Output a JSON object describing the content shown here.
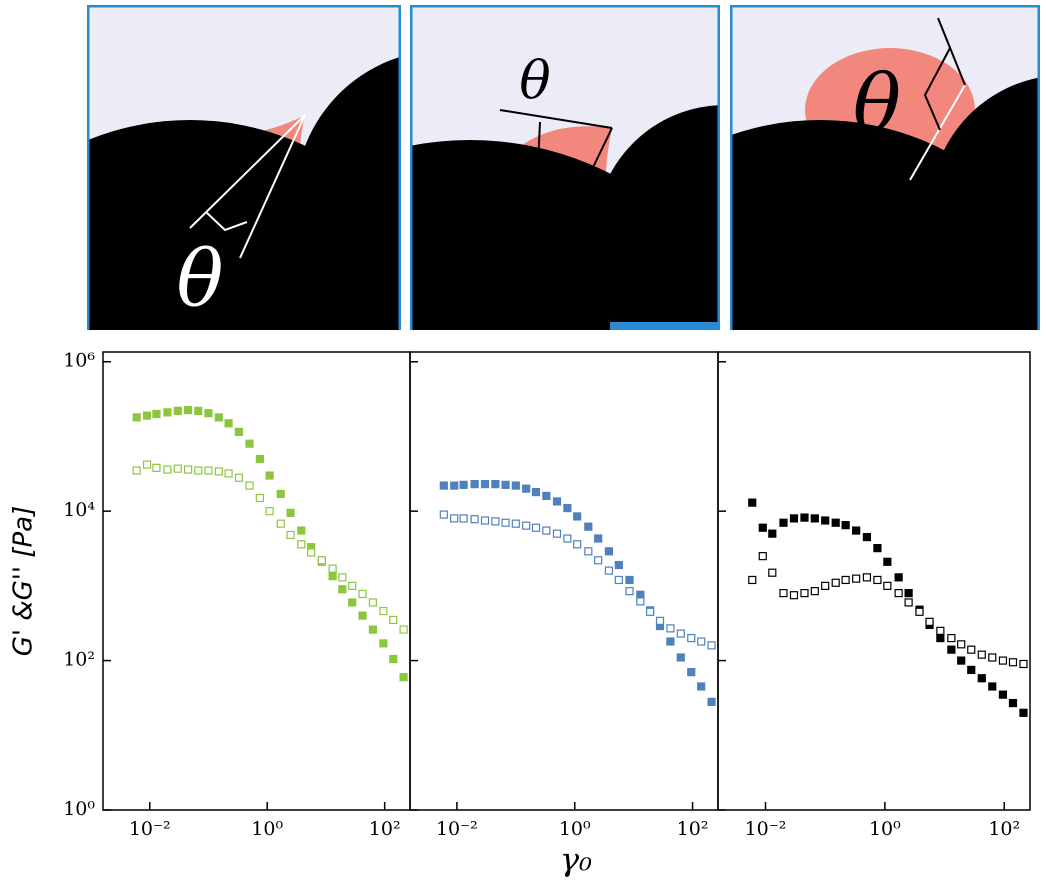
{
  "schematics": [
    {
      "label": "θ"
    },
    {
      "label": "θ"
    },
    {
      "label": "θ"
    }
  ],
  "chart_data": [
    {
      "type": "scatter",
      "ylabel": "G' &G'' [Pa]",
      "xscale": "log",
      "yscale": "log",
      "xlim": [
        0.0016,
        270
      ],
      "ylim": [
        1,
        1350000
      ],
      "xticks": [
        {
          "value": 0.01,
          "label": "10⁻²"
        },
        {
          "value": 1,
          "label": "10⁰"
        },
        {
          "value": 100,
          "label": "10²"
        }
      ],
      "yticks": [
        {
          "value": 1,
          "label": "10⁰"
        },
        {
          "value": 100,
          "label": "10²"
        },
        {
          "value": 10000,
          "label": "10⁴"
        },
        {
          "value": 1000000,
          "label": "10⁶"
        }
      ],
      "x": [
        0.006,
        0.009,
        0.013,
        0.02,
        0.03,
        0.045,
        0.067,
        0.1,
        0.15,
        0.22,
        0.33,
        0.5,
        0.75,
        1.1,
        1.7,
        2.5,
        3.8,
        5.6,
        8.5,
        13,
        19,
        28,
        42,
        63,
        95,
        140,
        210
      ],
      "series": [
        {
          "color": "#8cc63f",
          "filled": true,
          "values": [
            180000,
            190000,
            200000,
            210000,
            220000,
            225000,
            220000,
            205000,
            180000,
            150000,
            115000,
            80000,
            50000,
            30000,
            17000,
            9500,
            5500,
            3300,
            2100,
            1350,
            900,
            600,
            400,
            260,
            170,
            105,
            60
          ]
        },
        {
          "color": "#8cc63f",
          "filled": false,
          "values": [
            35000,
            42000,
            38000,
            36000,
            37000,
            36000,
            35000,
            35000,
            34000,
            32000,
            28000,
            22000,
            15000,
            10000,
            6800,
            4800,
            3600,
            2800,
            2200,
            1700,
            1300,
            1000,
            780,
            600,
            460,
            350,
            260
          ]
        }
      ]
    },
    {
      "type": "scatter",
      "xlabel": "γ₀",
      "xscale": "log",
      "yscale": "log",
      "xlim": [
        0.0016,
        270
      ],
      "ylim": [
        1,
        1350000
      ],
      "xticks": [
        {
          "value": 0.01,
          "label": "10⁻²"
        },
        {
          "value": 1,
          "label": "10⁰"
        },
        {
          "value": 100,
          "label": "10²"
        }
      ],
      "yticks": [
        1,
        100,
        10000,
        1000000
      ],
      "x": [
        0.006,
        0.009,
        0.013,
        0.02,
        0.03,
        0.045,
        0.067,
        0.1,
        0.15,
        0.22,
        0.33,
        0.5,
        0.75,
        1.1,
        1.7,
        2.5,
        3.8,
        5.6,
        8.5,
        13,
        19,
        28,
        42,
        63,
        95,
        140,
        210
      ],
      "series": [
        {
          "color": "#4f81bd",
          "filled": true,
          "values": [
            22000,
            22000,
            22500,
            23000,
            23000,
            23000,
            22500,
            22000,
            20000,
            18000,
            16000,
            13500,
            11000,
            8500,
            6200,
            4300,
            2900,
            1900,
            1200,
            760,
            470,
            290,
            180,
            110,
            70,
            45,
            28
          ]
        },
        {
          "color": "#4f81bd",
          "filled": false,
          "values": [
            9000,
            8000,
            8000,
            7800,
            7500,
            7300,
            7000,
            6800,
            6400,
            6000,
            5500,
            5000,
            4300,
            3600,
            2900,
            2200,
            1600,
            1200,
            850,
            620,
            450,
            340,
            270,
            230,
            200,
            180,
            160
          ]
        }
      ]
    },
    {
      "type": "scatter",
      "xscale": "log",
      "yscale": "log",
      "xlim": [
        0.0016,
        270
      ],
      "ylim": [
        1,
        1350000
      ],
      "xticks": [
        {
          "value": 0.01,
          "label": "10⁻²"
        },
        {
          "value": 1,
          "label": "10⁰"
        },
        {
          "value": 100,
          "label": "10²"
        }
      ],
      "yticks": [
        1,
        100,
        10000,
        1000000
      ],
      "x": [
        0.006,
        0.009,
        0.013,
        0.02,
        0.03,
        0.045,
        0.067,
        0.1,
        0.15,
        0.22,
        0.33,
        0.5,
        0.75,
        1.1,
        1.7,
        2.5,
        3.8,
        5.6,
        8.5,
        13,
        19,
        28,
        42,
        63,
        95,
        140,
        210
      ],
      "series": [
        {
          "color": "#000000",
          "filled": true,
          "values": [
            13000,
            6000,
            5000,
            7000,
            8000,
            8200,
            8000,
            7500,
            7000,
            6500,
            5500,
            4500,
            3200,
            2100,
            1300,
            800,
            480,
            300,
            200,
            140,
            100,
            75,
            58,
            45,
            35,
            27,
            20
          ]
        },
        {
          "color": "#000000",
          "filled": false,
          "values": [
            1200,
            2500,
            1500,
            800,
            750,
            800,
            850,
            1000,
            1100,
            1200,
            1250,
            1300,
            1200,
            1000,
            800,
            600,
            450,
            330,
            250,
            200,
            165,
            140,
            120,
            110,
            100,
            95,
            90
          ]
        }
      ]
    }
  ]
}
